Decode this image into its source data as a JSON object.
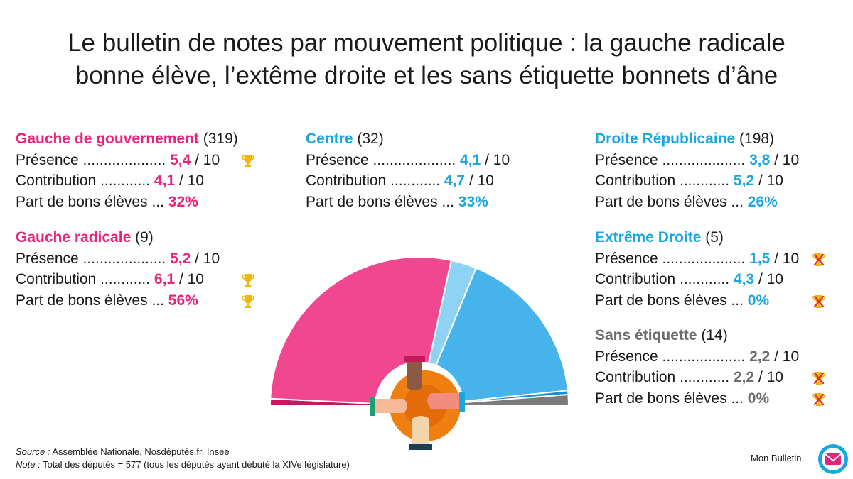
{
  "title_line1": "Le bulletin de notes par mouvement politique : la gauche radicale",
  "title_line2": "bonne élève, l’extême droite et les sans étiquette bonnets d’âne",
  "groups": [
    {
      "name": "Gauche de gouvernement",
      "count": "(319)",
      "color": "#e8247a",
      "rows": [
        {
          "label": "Présence ....................",
          "value": "5,4",
          "suffix": " / 10",
          "award": "trophy"
        },
        {
          "label": "Contribution  ............",
          "value": "4,1",
          "suffix": " / 10",
          "award": ""
        },
        {
          "label": "Part de bons élèves ...",
          "value": "32%",
          "suffix": "",
          "award": ""
        }
      ]
    },
    {
      "name": "Gauche radicale",
      "count": "(9)",
      "color": "#e8247a",
      "rows": [
        {
          "label": "Présence ....................",
          "value": "5,2",
          "suffix": " / 10",
          "award": ""
        },
        {
          "label": "Contribution  ............",
          "value": "6,1",
          "suffix": " / 10",
          "award": "trophy"
        },
        {
          "label": "Part de bons élèves ...",
          "value": "56%",
          "suffix": "",
          "award": "trophy"
        }
      ]
    },
    {
      "name": "Centre",
      "count": "(32)",
      "color": "#1ba6e0",
      "rows": [
        {
          "label": "Présence ....................",
          "value": "4,1",
          "suffix": " / 10",
          "award": ""
        },
        {
          "label": "Contribution  ............",
          "value": "4,7",
          "suffix": " / 10",
          "award": ""
        },
        {
          "label": "Part de bons élèves ...",
          "value": "33%",
          "suffix": "",
          "award": ""
        }
      ]
    },
    {
      "name": "Droite Républicaine",
      "count": "(198)",
      "color": "#1ba6e0",
      "rows": [
        {
          "label": "Présence ....................",
          "value": "3,8",
          "suffix": " / 10",
          "award": ""
        },
        {
          "label": "Contribution  ............",
          "value": "5,2",
          "suffix": " / 10",
          "award": ""
        },
        {
          "label": "Part de bons élèves ...",
          "value": "26%",
          "suffix": "",
          "award": ""
        }
      ]
    },
    {
      "name": "Extrême Droite",
      "count": "(5)",
      "color": "#1ba6e0",
      "rows": [
        {
          "label": "Présence ....................",
          "value": "1,5",
          "suffix": " / 10",
          "award": "bad-trophy"
        },
        {
          "label": "Contribution  ............",
          "value": "4,3",
          "suffix": " / 10",
          "award": ""
        },
        {
          "label": "Part de bons élèves ...",
          "value": "0%",
          "suffix": "",
          "award": "bad-trophy"
        }
      ]
    },
    {
      "name": "Sans étiquette",
      "count": "(14)",
      "color": "#6d6d6d",
      "rows": [
        {
          "label": "Présence ....................",
          "value": "2,2",
          "suffix": " / 10",
          "award": ""
        },
        {
          "label": "Contribution  ............",
          "value": "2,2",
          "suffix": " / 10",
          "award": "bad-trophy"
        },
        {
          "label": "Part de bons élèves ...",
          "value": "0%",
          "suffix": "",
          "award": "bad-trophy"
        }
      ]
    }
  ],
  "chart_data": {
    "type": "pie",
    "half_donut": true,
    "categories": [
      "Gauche radicale",
      "Gauche de gouvernement",
      "Centre",
      "Droite Républicaine",
      "Extrême Droite",
      "Sans étiquette"
    ],
    "values": [
      9,
      319,
      32,
      198,
      5,
      14
    ],
    "colors": [
      "#c3195d",
      "#f0478f",
      "#8fd3f4",
      "#46b3ea",
      "#1590c8",
      "#7b7b7b"
    ],
    "total": 577
  },
  "footer": {
    "source_label": "Source :",
    "source_text": " Assemblée Nationale, Nosdéputés.fr, Insee",
    "note_label": "Note :",
    "note_text": " Total des députés = 577 (tous les députés ayant débuté la XIVe législature)"
  },
  "brand": "Mon Bulletin",
  "icons": {
    "good": "gold-trophy-icon",
    "bad": "crossed-trophy-icon",
    "logo": "envelope-logo-icon"
  }
}
